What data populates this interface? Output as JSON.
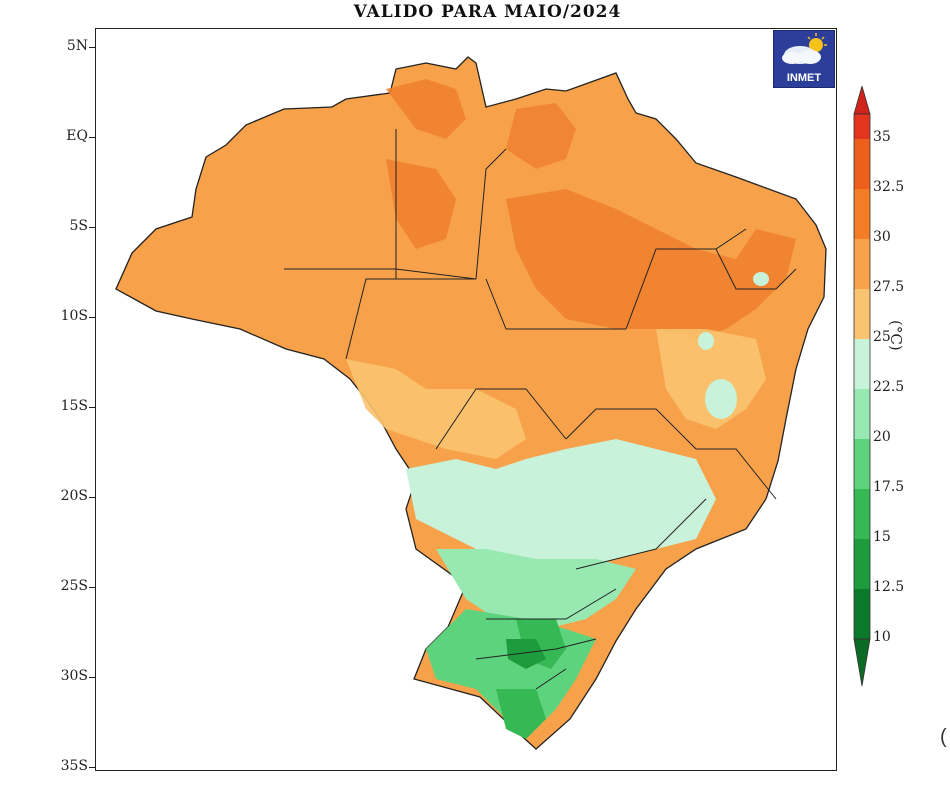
{
  "title": "VALIDO PARA MAIO/2024",
  "logo": {
    "text": "INMET",
    "icon": "cloud-sun-icon"
  },
  "latitude_labels": [
    "5N",
    "EQ",
    "5S",
    "10S",
    "15S",
    "20S",
    "25S",
    "30S",
    "35S"
  ],
  "colorbar": {
    "unit": "(°C)",
    "ticks": [
      "35",
      "32.5",
      "30",
      "27.5",
      "25",
      "22.5",
      "20",
      "17.5",
      "15",
      "12.5",
      "10"
    ],
    "colors": [
      "#e2341e",
      "#ee5f1c",
      "#f47c24",
      "#f7a24a",
      "#f9c36f",
      "#c9f2da",
      "#98e8b2",
      "#5ed37e",
      "#36b954",
      "#1e9b3c",
      "#0b7b2b"
    ]
  },
  "map_colors": {
    "hot": "#ee7f2d",
    "warm": "#f7a24a",
    "mild": "#f9c36f",
    "cool": "#c9f2da",
    "cooler": "#98e8b2",
    "cold": "#5ed37e",
    "colder": "#36b954",
    "coldest": "#1e9b3c"
  },
  "stray_char": "("
}
